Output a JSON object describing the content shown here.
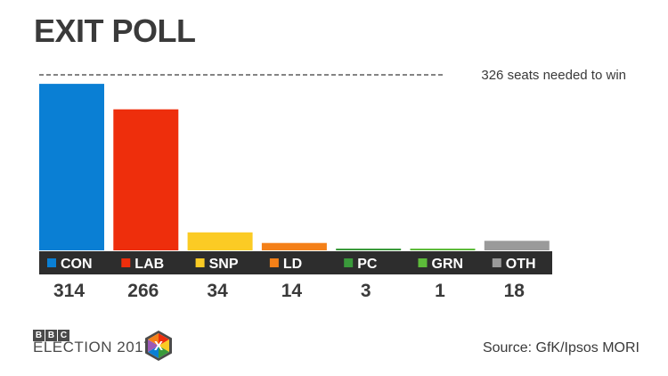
{
  "title": "EXIT POLL",
  "source": "Source: GfK/Ipsos MORI",
  "logo": {
    "bbc_letters": [
      "B",
      "B",
      "C"
    ],
    "election_text": "ELECTION 2017",
    "badge_mark": "X"
  },
  "chart_data": {
    "type": "bar",
    "categories": [
      "CON",
      "LAB",
      "SNP",
      "LD",
      "PC",
      "GRN",
      "OTH"
    ],
    "values": [
      314,
      266,
      34,
      14,
      3,
      1,
      18
    ],
    "colors": [
      "#0a7fd4",
      "#ee2e0c",
      "#fbcb24",
      "#f48018",
      "#3a9a3b",
      "#5dbb3a",
      "#9a9a9a"
    ],
    "threshold": {
      "value": 326,
      "label": "326 seats needed to win"
    },
    "ylim": [
      0,
      326
    ],
    "title": "EXIT POLL",
    "xlabel": "",
    "ylabel": ""
  }
}
